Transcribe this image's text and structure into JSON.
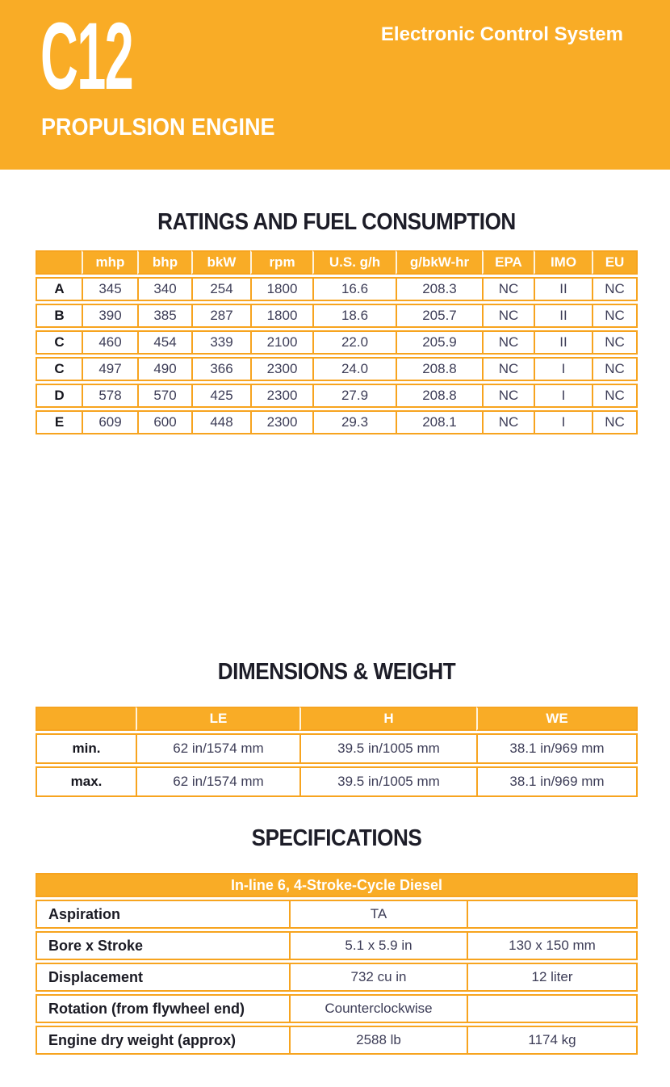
{
  "theme": {
    "amber": "#F9AC26",
    "line": "#F7A41F",
    "ink": "#1D1D28",
    "value_text": "#3D3D57"
  },
  "header": {
    "model": "C12",
    "subtitle": "PROPULSION ENGINE",
    "tagline": "Electronic Control System"
  },
  "ratings": {
    "title": "RATINGS AND FUEL CONSUMPTION",
    "columns": [
      "",
      "mhp",
      "bhp",
      "bkW",
      "rpm",
      "U.S. g/h",
      "g/bkW-hr",
      "EPA",
      "IMO",
      "EU"
    ],
    "rows": [
      {
        "label": "A",
        "values": [
          "345",
          "340",
          "254",
          "1800",
          "16.6",
          "208.3",
          "NC",
          "II",
          "NC"
        ]
      },
      {
        "label": "B",
        "values": [
          "390",
          "385",
          "287",
          "1800",
          "18.6",
          "205.7",
          "NC",
          "II",
          "NC"
        ]
      },
      {
        "label": "C",
        "values": [
          "460",
          "454",
          "339",
          "2100",
          "22.0",
          "205.9",
          "NC",
          "II",
          "NC"
        ]
      },
      {
        "label": "C",
        "values": [
          "497",
          "490",
          "366",
          "2300",
          "24.0",
          "208.8",
          "NC",
          "I",
          "NC"
        ]
      },
      {
        "label": "D",
        "values": [
          "578",
          "570",
          "425",
          "2300",
          "27.9",
          "208.8",
          "NC",
          "I",
          "NC"
        ]
      },
      {
        "label": "E",
        "values": [
          "609",
          "600",
          "448",
          "2300",
          "29.3",
          "208.1",
          "NC",
          "I",
          "NC"
        ]
      }
    ]
  },
  "dimensions": {
    "title": "DIMENSIONS & WEIGHT",
    "columns": [
      "",
      "LE",
      "H",
      "WE"
    ],
    "rows": [
      {
        "label": "min.",
        "values": [
          "62 in/1574 mm",
          "39.5 in/1005 mm",
          "38.1 in/969 mm"
        ]
      },
      {
        "label": "max.",
        "values": [
          "62 in/1574 mm",
          "39.5 in/1005 mm",
          "38.1 in/969 mm"
        ]
      }
    ]
  },
  "specifications": {
    "title": "SPECIFICATIONS",
    "header": "In-line 6, 4-Stroke-Cycle Diesel",
    "rows": [
      {
        "label": "Aspiration",
        "values": [
          "TA",
          ""
        ]
      },
      {
        "label": "Bore x Stroke",
        "values": [
          "5.1 x 5.9 in",
          "130 x 150 mm"
        ]
      },
      {
        "label": "Displacement",
        "values": [
          "732 cu in",
          "12 liter"
        ]
      },
      {
        "label": "Rotation (from flywheel end)",
        "values": [
          "Counterclockwise",
          ""
        ]
      },
      {
        "label": "Engine dry weight (approx)",
        "values": [
          "2588 lb",
          "1174 kg"
        ]
      }
    ]
  }
}
